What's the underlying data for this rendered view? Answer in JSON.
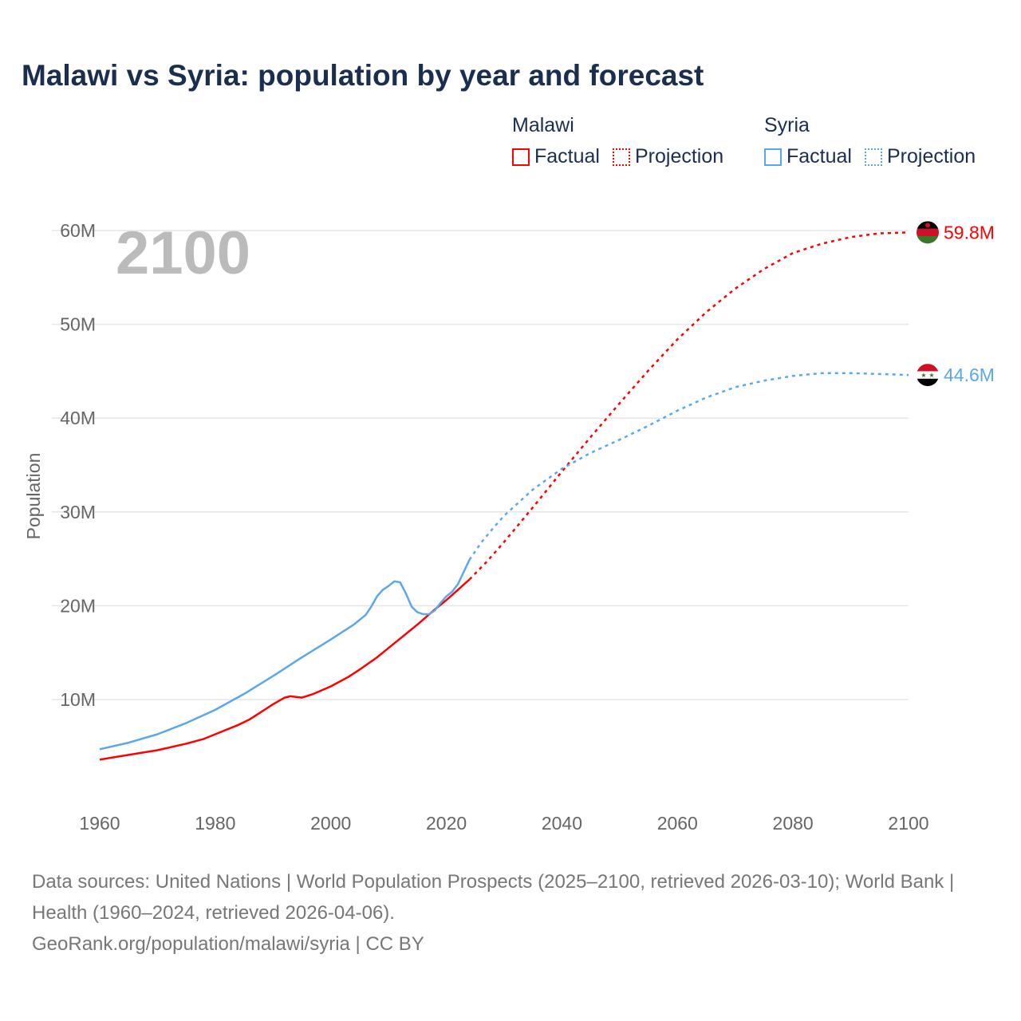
{
  "title": "Malawi vs Syria: population by year and forecast",
  "legend": {
    "groups": [
      {
        "name": "Malawi",
        "color": "#ff0000",
        "factual": "Factual",
        "projection": "Projection"
      },
      {
        "name": "Syria",
        "color": "#5ba7ea",
        "factual": "Factual",
        "projection": "Projection"
      }
    ]
  },
  "year_label": "2100",
  "footer": {
    "sources": "Data sources: United Nations | World Population Prospects (2025–2100, retrieved 2026-03-10); World Bank | Health (1960–2024, retrieved 2026-04-06).",
    "credit": "GeoRank.org/population/malawi/syria | CC BY"
  },
  "chart_data": {
    "type": "line",
    "title": "Malawi vs Syria: population by year and forecast",
    "xlabel": "",
    "ylabel": "Population",
    "xlim": [
      1960,
      2100
    ],
    "ylim": [
      0,
      60000000
    ],
    "x_ticks": [
      "1960",
      "1980",
      "2000",
      "2020",
      "2040",
      "2060",
      "2080",
      "2100"
    ],
    "y_ticks": [
      {
        "v": 10000000,
        "label": "10M"
      },
      {
        "v": 20000000,
        "label": "20M"
      },
      {
        "v": 30000000,
        "label": "30M"
      },
      {
        "v": 40000000,
        "label": "40M"
      },
      {
        "v": 50000000,
        "label": "50M"
      },
      {
        "v": 60000000,
        "label": "60M"
      }
    ],
    "series": [
      {
        "name": "Malawi",
        "color": "#ff0000",
        "end_label": "59.8M",
        "factual": [
          [
            1960,
            3.6
          ],
          [
            1965,
            4.1
          ],
          [
            1970,
            4.6
          ],
          [
            1975,
            5.3
          ],
          [
            1978,
            5.8
          ],
          [
            1980,
            6.3
          ],
          [
            1984,
            7.3
          ],
          [
            1986,
            7.9
          ],
          [
            1988,
            8.7
          ],
          [
            1990,
            9.5
          ],
          [
            1992,
            10.2
          ],
          [
            1993,
            10.35
          ],
          [
            1995,
            10.2
          ],
          [
            1997,
            10.6
          ],
          [
            2000,
            11.4
          ],
          [
            2003,
            12.4
          ],
          [
            2005,
            13.2
          ],
          [
            2008,
            14.5
          ],
          [
            2010,
            15.5
          ],
          [
            2013,
            17.0
          ],
          [
            2015,
            18.0
          ],
          [
            2018,
            19.6
          ],
          [
            2020,
            20.6
          ],
          [
            2022,
            21.7
          ],
          [
            2024,
            22.8
          ]
        ],
        "projection": [
          [
            2024,
            22.8
          ],
          [
            2027,
            24.7
          ],
          [
            2030,
            26.8
          ],
          [
            2035,
            30.5
          ],
          [
            2040,
            34.3
          ],
          [
            2045,
            38.0
          ],
          [
            2050,
            41.6
          ],
          [
            2055,
            45.1
          ],
          [
            2060,
            48.4
          ],
          [
            2065,
            51.3
          ],
          [
            2070,
            53.8
          ],
          [
            2075,
            55.9
          ],
          [
            2080,
            57.6
          ],
          [
            2085,
            58.6
          ],
          [
            2090,
            59.3
          ],
          [
            2095,
            59.7
          ],
          [
            2100,
            59.8
          ]
        ]
      },
      {
        "name": "Syria",
        "color": "#5ba7ea",
        "end_label": "44.6M",
        "factual": [
          [
            1960,
            4.7
          ],
          [
            1965,
            5.4
          ],
          [
            1970,
            6.3
          ],
          [
            1975,
            7.5
          ],
          [
            1980,
            8.9
          ],
          [
            1985,
            10.6
          ],
          [
            1990,
            12.5
          ],
          [
            1995,
            14.5
          ],
          [
            2000,
            16.4
          ],
          [
            2004,
            18.0
          ],
          [
            2006,
            19.0
          ],
          [
            2007,
            19.9
          ],
          [
            2008,
            21.0
          ],
          [
            2009,
            21.7
          ],
          [
            2010,
            22.1
          ],
          [
            2011,
            22.6
          ],
          [
            2012,
            22.5
          ],
          [
            2013,
            21.3
          ],
          [
            2014,
            19.9
          ],
          [
            2015,
            19.3
          ],
          [
            2016,
            19.1
          ],
          [
            2017,
            19.1
          ],
          [
            2018,
            19.5
          ],
          [
            2019,
            20.3
          ],
          [
            2020,
            21.0
          ],
          [
            2021,
            21.5
          ],
          [
            2022,
            22.3
          ],
          [
            2024,
            24.9
          ]
        ],
        "projection": [
          [
            2024,
            24.9
          ],
          [
            2026,
            26.7
          ],
          [
            2028,
            28.2
          ],
          [
            2030,
            29.6
          ],
          [
            2035,
            32.4
          ],
          [
            2040,
            34.6
          ],
          [
            2045,
            36.3
          ],
          [
            2050,
            37.7
          ],
          [
            2055,
            39.2
          ],
          [
            2060,
            40.8
          ],
          [
            2065,
            42.2
          ],
          [
            2070,
            43.3
          ],
          [
            2075,
            44.0
          ],
          [
            2080,
            44.5
          ],
          [
            2085,
            44.8
          ],
          [
            2090,
            44.8
          ],
          [
            2095,
            44.7
          ],
          [
            2100,
            44.6
          ]
        ]
      }
    ]
  }
}
